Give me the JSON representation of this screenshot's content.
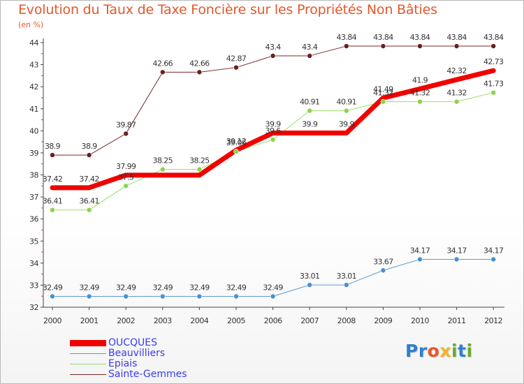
{
  "header": {
    "title": "Evolution du Taux de Taxe Foncière sur les Propriétés Non Bâties",
    "unit": "(en %)"
  },
  "logo": {
    "letters": [
      {
        "ch": "P",
        "color": "#2f7fd0"
      },
      {
        "ch": "r",
        "color": "#2f7fd0"
      },
      {
        "ch": "o",
        "color": "#e4582d"
      },
      {
        "ch": "x",
        "color": "#f3b428"
      },
      {
        "ch": "i",
        "color": "#6aab2c"
      },
      {
        "ch": "t",
        "color": "#2f7fd0"
      },
      {
        "ch": "i",
        "color": "#6aab2c"
      }
    ]
  },
  "chart_data": {
    "type": "line",
    "x": [
      "2000",
      "2001",
      "2002",
      "2003",
      "2004",
      "2005",
      "2006",
      "2007",
      "2008",
      "2009",
      "2010",
      "2011",
      "2012"
    ],
    "ylim": [
      32,
      44
    ],
    "yticks": [
      32,
      33,
      34,
      35,
      36,
      37,
      38,
      39,
      40,
      41,
      42,
      43,
      44
    ],
    "grid": false,
    "legend_position": "bottom-left",
    "series": [
      {
        "name": "OUCQUES",
        "color": "#f10000",
        "width": 7,
        "marker": "none",
        "values": [
          37.42,
          37.42,
          37.99,
          37.99,
          37.99,
          39.12,
          39.9,
          39.9,
          39.9,
          41.49,
          41.9,
          42.32,
          42.73
        ],
        "labels": [
          "37.42",
          "37.42",
          "37.99",
          "",
          "",
          "39.12",
          "39.9",
          "39.9",
          "39.9",
          "41.49",
          "41.9",
          "42.32",
          "42.73"
        ]
      },
      {
        "name": "Beauvilliers",
        "color": "#5c9ad4",
        "width": 1,
        "marker": "#4a90d0",
        "values": [
          32.49,
          32.49,
          32.49,
          32.49,
          32.49,
          32.49,
          32.49,
          33.01,
          33.01,
          33.67,
          34.17,
          34.17,
          34.17
        ],
        "labels": [
          "32.49",
          "32.49",
          "32.49",
          "32.49",
          "32.49",
          "32.49",
          "32.49",
          "33.01",
          "33.01",
          "33.67",
          "34.17",
          "34.17",
          "34.17"
        ]
      },
      {
        "name": "Epiais",
        "color": "#99dd66",
        "width": 1,
        "marker": "#8bd448",
        "values": [
          36.41,
          36.41,
          37.5,
          38.25,
          38.25,
          39.06,
          39.6,
          40.91,
          40.91,
          41.32,
          41.32,
          41.32,
          41.73
        ],
        "labels": [
          "36.41",
          "36.41",
          "37.5",
          "38.25",
          "38.25",
          "39.06",
          "39.6",
          "40.91",
          "40.91",
          "41.32",
          "41.32",
          "41.32",
          "41.73"
        ]
      },
      {
        "name": "Sainte-Gemmes",
        "color": "#7a2a2a",
        "width": 1,
        "marker": "#6b1f1f",
        "values": [
          38.9,
          38.9,
          39.87,
          42.66,
          42.66,
          42.87,
          43.4,
          43.4,
          43.84,
          43.84,
          43.84,
          43.84,
          43.84
        ],
        "labels": [
          "38.9",
          "38.9",
          "39.87",
          "42.66",
          "42.66",
          "42.87",
          "43.4",
          "43.4",
          "43.84",
          "43.84",
          "43.84",
          "43.84",
          "43.84"
        ]
      }
    ]
  }
}
